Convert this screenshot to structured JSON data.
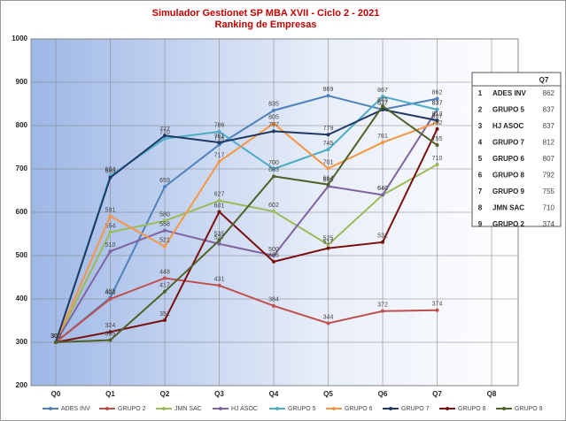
{
  "chart_data": {
    "type": "line",
    "title": "Simulador Gestionet SP MBA XVII - Ciclo 2 - 2021",
    "subtitle": "Ranking de Empresas",
    "categories": [
      "Q0",
      "Q1",
      "Q2",
      "Q3",
      "Q4",
      "Q5",
      "Q6",
      "Q7",
      "Q8"
    ],
    "ylim": [
      200,
      1000
    ],
    "yticks": [
      200,
      300,
      400,
      500,
      600,
      700,
      800,
      900,
      1000
    ],
    "grid": true,
    "series": [
      {
        "name": "ADES INV",
        "color": "#4f81bd",
        "values": [
          300,
          403,
          659,
          756,
          835,
          869,
          837,
          862,
          null
        ]
      },
      {
        "name": "GRUPO 2",
        "color": "#c0504d",
        "values": [
          300,
          400,
          448,
          431,
          384,
          344,
          372,
          374,
          null
        ]
      },
      {
        "name": "JMN SAC",
        "color": "#9bbb59",
        "values": [
          300,
          554,
          580,
          627,
          602,
          525,
          640,
          710,
          null
        ]
      },
      {
        "name": "HJ ASOC",
        "color": "#8064a2",
        "values": [
          300,
          510,
          558,
          527,
          500,
          660,
          640,
          837,
          null
        ]
      },
      {
        "name": "GRUPO 5",
        "color": "#4bacc6",
        "values": [
          300,
          684,
          770,
          786,
          700,
          745,
          867,
          837,
          null
        ]
      },
      {
        "name": "GRUPO 6",
        "color": "#f79646",
        "values": [
          300,
          591,
          521,
          717,
          805,
          701,
          761,
          807,
          null
        ]
      },
      {
        "name": "GRUPO 7",
        "color": "#1f3864",
        "values": [
          300,
          680,
          777,
          761,
          787,
          779,
          837,
          812,
          null
        ]
      },
      {
        "name": "GRUPO 8",
        "color": "#7b1010",
        "values": [
          300,
          324,
          351,
          601,
          486,
          517,
          531,
          792,
          null
        ]
      },
      {
        "name": "GRUPO 9",
        "color": "#4f6228",
        "values": [
          300,
          305,
          417,
          535,
          683,
          664,
          845,
          755,
          null
        ]
      }
    ]
  },
  "ranking": {
    "header": "Q7",
    "rows": [
      [
        1,
        "ADES INV",
        862
      ],
      [
        2,
        "GRUPO 5",
        837
      ],
      [
        3,
        "HJ ASOC",
        837
      ],
      [
        4,
        "GRUPO 7",
        812
      ],
      [
        5,
        "GRUPO 6",
        807
      ],
      [
        6,
        "GRUPO 8",
        792
      ],
      [
        7,
        "GRUPO 9",
        755
      ],
      [
        8,
        "JMN SAC",
        710
      ],
      [
        9,
        "GRUPO 2",
        374
      ]
    ]
  }
}
